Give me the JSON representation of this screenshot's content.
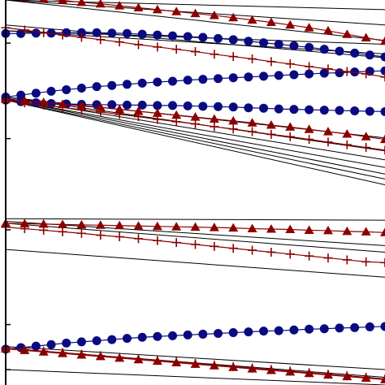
{
  "chart_data": {
    "type": "line",
    "title": "",
    "xlabel": "",
    "ylabel": "",
    "xlim": [
      0,
      1
    ],
    "ylim": [
      0,
      1
    ],
    "grid": false,
    "legend": "none",
    "colors": {
      "blue_series": "#0a0a80",
      "red_series": "#8b0000",
      "thin_lines": "#000000",
      "axes": "#000000"
    },
    "y_ticks": [
      0.04,
      0.157,
      0.403,
      0.64,
      0.888
    ],
    "thin_lines": [
      [
        0.0,
        1.0,
        1.0,
        0.975
      ],
      [
        0.0,
        1.0,
        1.0,
        0.935
      ],
      [
        0.0,
        1.0,
        1.0,
        0.895
      ],
      [
        0.0,
        0.935,
        1.0,
        0.85
      ],
      [
        0.0,
        0.92,
        1.0,
        0.86
      ],
      [
        0.0,
        0.92,
        1.0,
        0.885
      ],
      [
        0.0,
        0.748,
        1.0,
        0.642
      ],
      [
        0.0,
        0.748,
        1.0,
        0.608
      ],
      [
        0.0,
        0.745,
        1.0,
        0.585
      ],
      [
        0.0,
        0.742,
        1.0,
        0.565
      ],
      [
        0.0,
        0.742,
        1.0,
        0.548
      ],
      [
        0.0,
        0.74,
        1.0,
        0.535
      ],
      [
        0.0,
        0.74,
        1.0,
        0.52
      ],
      [
        0.0,
        0.432,
        1.0,
        0.428
      ],
      [
        0.0,
        0.425,
        1.0,
        0.362
      ],
      [
        0.0,
        0.42,
        1.0,
        0.345
      ],
      [
        0.0,
        0.352,
        1.0,
        0.28
      ],
      [
        0.0,
        0.1,
        1.0,
        0.04
      ],
      [
        0.0,
        0.095,
        1.0,
        0.02
      ],
      [
        0.0,
        0.04,
        1.0,
        0.0
      ]
    ],
    "series": [
      {
        "marker": "circle",
        "color": "#0a0a80",
        "x": [
          0.0,
          0.04,
          0.08,
          0.12,
          0.16,
          0.2,
          0.24,
          0.28,
          0.32,
          0.36,
          0.4,
          0.44,
          0.48,
          0.52,
          0.56,
          0.6,
          0.64,
          0.68,
          0.72,
          0.76,
          0.8,
          0.84,
          0.88,
          0.92,
          0.96,
          1.0
        ],
        "y": [
          0.913,
          0.913,
          0.914,
          0.914,
          0.915,
          0.915,
          0.915,
          0.914,
          0.913,
          0.911,
          0.909,
          0.907,
          0.905,
          0.903,
          0.9,
          0.897,
          0.893,
          0.889,
          0.885,
          0.881,
          0.877,
          0.872,
          0.867,
          0.862,
          0.857,
          0.852
        ]
      },
      {
        "marker": "circle",
        "color": "#0a0a80",
        "x": [
          0.0,
          0.04,
          0.08,
          0.12,
          0.16,
          0.2,
          0.24,
          0.28,
          0.32,
          0.36,
          0.4,
          0.44,
          0.48,
          0.52,
          0.56,
          0.6,
          0.64,
          0.68,
          0.72,
          0.76,
          0.8,
          0.84,
          0.88,
          0.92,
          0.96,
          1.0
        ],
        "y": [
          0.748,
          0.753,
          0.758,
          0.763,
          0.767,
          0.771,
          0.775,
          0.778,
          0.781,
          0.784,
          0.787,
          0.789,
          0.792,
          0.794,
          0.796,
          0.798,
          0.8,
          0.802,
          0.804,
          0.806,
          0.808,
          0.81,
          0.811,
          0.813,
          0.815,
          0.816
        ]
      },
      {
        "marker": "circle",
        "color": "#0a0a80",
        "x": [
          0.0,
          0.04,
          0.08,
          0.12,
          0.16,
          0.2,
          0.24,
          0.28,
          0.32,
          0.36,
          0.4,
          0.44,
          0.48,
          0.52,
          0.56,
          0.6,
          0.64,
          0.68,
          0.72,
          0.76,
          0.8,
          0.84,
          0.88,
          0.92,
          0.96,
          1.0
        ],
        "y": [
          0.74,
          0.736,
          0.733,
          0.731,
          0.73,
          0.729,
          0.728,
          0.728,
          0.727,
          0.727,
          0.726,
          0.726,
          0.725,
          0.724,
          0.723,
          0.722,
          0.72,
          0.719,
          0.717,
          0.716,
          0.715,
          0.714,
          0.713,
          0.712,
          0.711,
          0.71
        ]
      },
      {
        "marker": "circle",
        "color": "#0a0a80",
        "x": [
          0.0,
          0.04,
          0.08,
          0.12,
          0.16,
          0.2,
          0.24,
          0.28,
          0.32,
          0.36,
          0.4,
          0.44,
          0.48,
          0.52,
          0.56,
          0.6,
          0.64,
          0.68,
          0.72,
          0.76,
          0.8,
          0.84,
          0.88,
          0.92,
          0.96,
          1.0
        ],
        "y": [
          0.093,
          0.097,
          0.101,
          0.105,
          0.109,
          0.112,
          0.115,
          0.118,
          0.121,
          0.124,
          0.126,
          0.128,
          0.13,
          0.132,
          0.134,
          0.136,
          0.138,
          0.14,
          0.141,
          0.143,
          0.145,
          0.146,
          0.148,
          0.149,
          0.151,
          0.152
        ]
      },
      {
        "marker": "triangle",
        "color": "#8b0000",
        "x": [
          0.0,
          0.05,
          0.1,
          0.15,
          0.2,
          0.25,
          0.3,
          0.35,
          0.4,
          0.45,
          0.5,
          0.55,
          0.6,
          0.65,
          0.7,
          0.75,
          0.8,
          0.85,
          0.9,
          0.95,
          1.0
        ],
        "y": [
          1.012,
          1.008,
          1.003,
          0.999,
          0.994,
          0.99,
          0.985,
          0.98,
          0.975,
          0.97,
          0.965,
          0.96,
          0.954,
          0.948,
          0.942,
          0.935,
          0.928,
          0.92,
          0.911,
          0.902,
          0.893
        ]
      },
      {
        "marker": "plus",
        "color": "#8b0000",
        "x": [
          0.0,
          0.05,
          0.1,
          0.15,
          0.2,
          0.25,
          0.3,
          0.35,
          0.4,
          0.45,
          0.5,
          0.55,
          0.6,
          0.65,
          0.7,
          0.75,
          0.8,
          0.85,
          0.9,
          0.95,
          1.0
        ],
        "y": [
          0.928,
          0.922,
          0.915,
          0.909,
          0.903,
          0.897,
          0.891,
          0.884,
          0.878,
          0.872,
          0.866,
          0.859,
          0.853,
          0.847,
          0.84,
          0.834,
          0.827,
          0.821,
          0.814,
          0.808,
          0.8
        ]
      },
      {
        "marker": "triangle",
        "color": "#8b0000",
        "x": [
          0.0,
          0.05,
          0.1,
          0.15,
          0.2,
          0.25,
          0.3,
          0.35,
          0.4,
          0.45,
          0.5,
          0.55,
          0.6,
          0.65,
          0.7,
          0.75,
          0.8,
          0.85,
          0.9,
          0.95,
          1.0
        ],
        "y": [
          0.742,
          0.738,
          0.734,
          0.729,
          0.725,
          0.721,
          0.716,
          0.711,
          0.706,
          0.701,
          0.696,
          0.691,
          0.686,
          0.681,
          0.675,
          0.67,
          0.664,
          0.658,
          0.652,
          0.645,
          0.638
        ]
      },
      {
        "marker": "plus",
        "color": "#8b0000",
        "x": [
          0.0,
          0.05,
          0.1,
          0.15,
          0.2,
          0.25,
          0.3,
          0.35,
          0.4,
          0.45,
          0.5,
          0.55,
          0.6,
          0.65,
          0.7,
          0.75,
          0.8,
          0.85,
          0.9,
          0.95,
          1.0
        ],
        "y": [
          0.738,
          0.733,
          0.727,
          0.721,
          0.715,
          0.709,
          0.703,
          0.697,
          0.69,
          0.684,
          0.678,
          0.671,
          0.665,
          0.658,
          0.651,
          0.645,
          0.638,
          0.631,
          0.624,
          0.617,
          0.61
        ]
      },
      {
        "marker": "triangle",
        "color": "#8b0000",
        "x": [
          0.0,
          0.05,
          0.1,
          0.15,
          0.2,
          0.25,
          0.3,
          0.35,
          0.4,
          0.45,
          0.5,
          0.55,
          0.6,
          0.65,
          0.7,
          0.75,
          0.8,
          0.85,
          0.9,
          0.95,
          1.0
        ],
        "y": [
          0.42,
          0.419,
          0.418,
          0.417,
          0.416,
          0.415,
          0.414,
          0.413,
          0.412,
          0.411,
          0.41,
          0.409,
          0.408,
          0.406,
          0.405,
          0.404,
          0.402,
          0.401,
          0.399,
          0.398,
          0.396
        ]
      },
      {
        "marker": "plus",
        "color": "#8b0000",
        "x": [
          0.0,
          0.05,
          0.1,
          0.15,
          0.2,
          0.25,
          0.3,
          0.35,
          0.4,
          0.45,
          0.5,
          0.55,
          0.6,
          0.65,
          0.7,
          0.75,
          0.8,
          0.85,
          0.9,
          0.95,
          1.0
        ],
        "y": [
          0.41,
          0.406,
          0.402,
          0.398,
          0.394,
          0.389,
          0.385,
          0.38,
          0.375,
          0.37,
          0.365,
          0.36,
          0.355,
          0.35,
          0.345,
          0.34,
          0.335,
          0.33,
          0.325,
          0.32,
          0.318
        ]
      },
      {
        "marker": "plus",
        "color": "#8b0000",
        "x": [
          0.0,
          0.05,
          0.1,
          0.15,
          0.2,
          0.25,
          0.3,
          0.35,
          0.4,
          0.45,
          0.5,
          0.55,
          0.6,
          0.65,
          0.7,
          0.75,
          0.8,
          0.85,
          0.9,
          0.95,
          1.0
        ],
        "y": [
          0.096,
          0.092,
          0.088,
          0.084,
          0.08,
          0.076,
          0.072,
          0.068,
          0.064,
          0.06,
          0.056,
          0.052,
          0.048,
          0.044,
          0.04,
          0.036,
          0.032,
          0.028,
          0.024,
          0.02,
          0.016
        ]
      },
      {
        "marker": "triangle",
        "color": "#8b0000",
        "x": [
          0.0,
          0.05,
          0.1,
          0.15,
          0.2,
          0.25,
          0.3,
          0.35,
          0.4,
          0.45,
          0.5,
          0.55,
          0.6,
          0.65,
          0.7,
          0.75,
          0.8,
          0.85,
          0.9,
          0.95,
          1.0
        ],
        "y": [
          0.094,
          0.09,
          0.086,
          0.082,
          0.078,
          0.074,
          0.07,
          0.066,
          0.062,
          0.058,
          0.054,
          0.05,
          0.046,
          0.042,
          0.038,
          0.034,
          0.03,
          0.026,
          0.022,
          0.018,
          0.014
        ]
      }
    ]
  }
}
